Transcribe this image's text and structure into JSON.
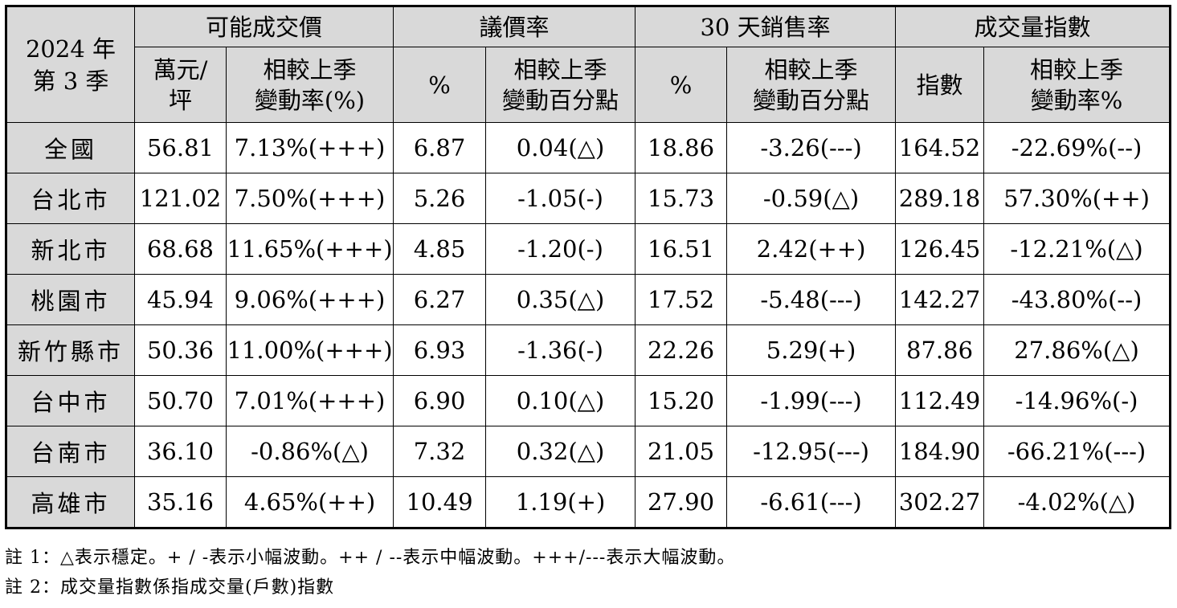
{
  "table": {
    "corner": {
      "line1": "2024 年",
      "line2": "第 3 季"
    },
    "groups": [
      "可能成交價",
      "議價率",
      "30 天銷售率",
      "成交量指數"
    ],
    "subheaders": [
      {
        "line1": "萬元/",
        "line2": "坪"
      },
      {
        "line1": "相較上季",
        "line2": "變動率(%)"
      },
      {
        "line1": "%",
        "line2": ""
      },
      {
        "line1": "相較上季",
        "line2": "變動百分點"
      },
      {
        "line1": "%",
        "line2": ""
      },
      {
        "line1": "相較上季",
        "line2": "變動百分點"
      },
      {
        "line1": "指數",
        "line2": ""
      },
      {
        "line1": "相較上季",
        "line2": "變動率%"
      }
    ],
    "rows": [
      {
        "region": "全國",
        "cells": [
          "56.81",
          "7.13%(+++)",
          "6.87",
          "0.04(△)",
          "18.86",
          "-3.26(---)",
          "164.52",
          "-22.69%(--)"
        ]
      },
      {
        "region": "台北市",
        "cells": [
          "121.02",
          "7.50%(+++)",
          "5.26",
          "-1.05(-)",
          "15.73",
          "-0.59(△)",
          "289.18",
          "57.30%(++)"
        ]
      },
      {
        "region": "新北市",
        "cells": [
          "68.68",
          "11.65%(+++)",
          "4.85",
          "-1.20(-)",
          "16.51",
          "2.42(++)",
          "126.45",
          "-12.21%(△)"
        ]
      },
      {
        "region": "桃園市",
        "cells": [
          "45.94",
          "9.06%(+++)",
          "6.27",
          "0.35(△)",
          "17.52",
          "-5.48(---)",
          "142.27",
          "-43.80%(--)"
        ]
      },
      {
        "region": "新竹縣市",
        "cells": [
          "50.36",
          "11.00%(+++)",
          "6.93",
          "-1.36(-)",
          "22.26",
          "5.29(+)",
          "87.86",
          "27.86%(△)"
        ]
      },
      {
        "region": "台中市",
        "cells": [
          "50.70",
          "7.01%(+++)",
          "6.90",
          "0.10(△)",
          "15.20",
          "-1.99(---)",
          "112.49",
          "-14.96%(-)"
        ]
      },
      {
        "region": "台南市",
        "cells": [
          "36.10",
          "-0.86%(△)",
          "7.32",
          "0.32(△)",
          "21.05",
          "-12.95(---)",
          "184.90",
          "-66.21%(---)"
        ]
      },
      {
        "region": "高雄市",
        "cells": [
          "35.16",
          "4.65%(++)",
          "10.49",
          "1.19(+)",
          "27.90",
          "-6.61(---)",
          "302.27",
          "-4.02%(△)"
        ]
      }
    ]
  },
  "notes": [
    "註 1：△表示穩定。+ / -表示小幅波動。++ / --表示中幅波動。+++/---表示大幅波動。",
    "註 2：成交量指數係指成交量(戶數)指數"
  ],
  "colors": {
    "header_bg": "#d9d9d9",
    "border": "#000000",
    "text": "#000000"
  }
}
